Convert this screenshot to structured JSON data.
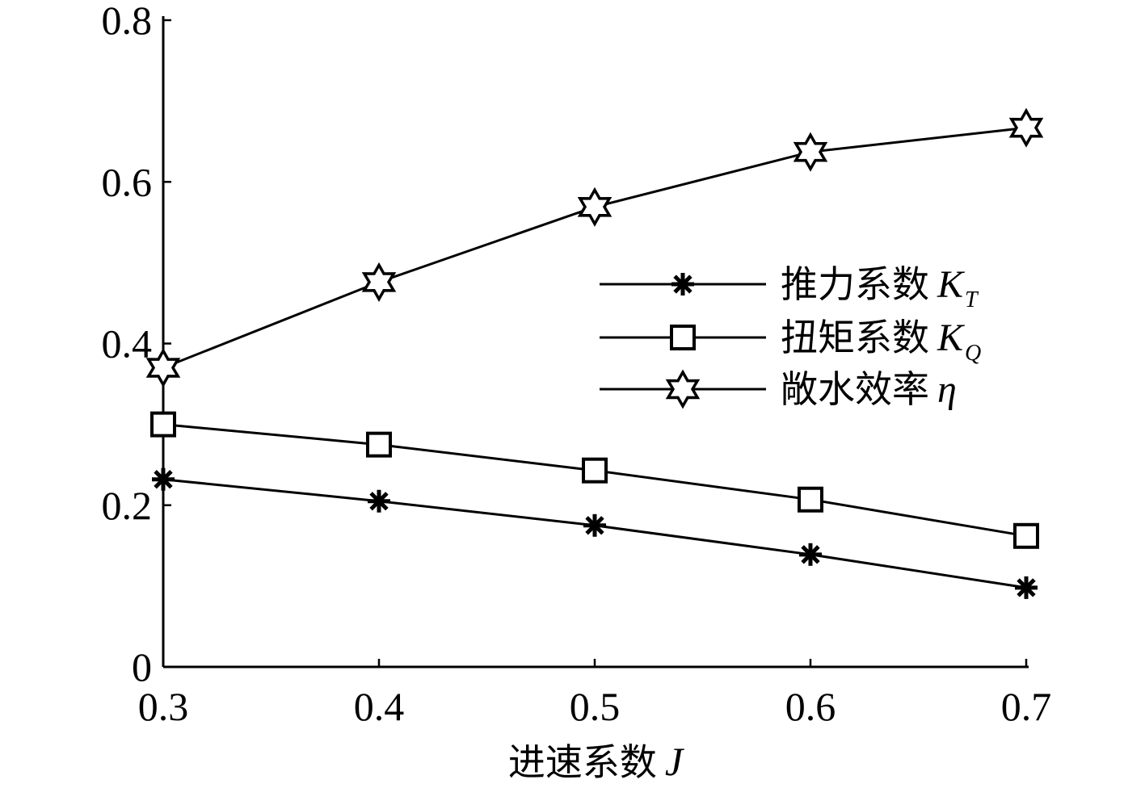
{
  "chart_data": {
    "type": "line",
    "xlabel": "进速系数",
    "xlabel_symbol": "J",
    "xlim": [
      0.3,
      0.7
    ],
    "ylim": [
      0,
      0.8
    ],
    "x": [
      0.3,
      0.4,
      0.5,
      0.6,
      0.7
    ],
    "x_ticks": [
      "0.3",
      "0.4",
      "0.5",
      "0.6",
      "0.7"
    ],
    "y_tick_values": [
      0,
      0.2,
      0.4,
      0.6,
      0.8
    ],
    "y_ticks": [
      "0",
      "0.2",
      "0.4",
      "0.6",
      "0.8"
    ],
    "grid": false,
    "legend_position": "center-right",
    "series": [
      {
        "name": "推力系数",
        "symbol": "K",
        "subscript": "T",
        "marker": "asterisk",
        "values": [
          0.232,
          0.205,
          0.175,
          0.139,
          0.098
        ]
      },
      {
        "name": "扭矩系数",
        "symbol": "K",
        "subscript": "Q",
        "marker": "square",
        "values": [
          0.3,
          0.275,
          0.243,
          0.207,
          0.162
        ]
      },
      {
        "name": "敞水效率",
        "symbol": "η",
        "subscript": "",
        "marker": "star",
        "values": [
          0.37,
          0.476,
          0.569,
          0.637,
          0.667
        ]
      }
    ]
  }
}
